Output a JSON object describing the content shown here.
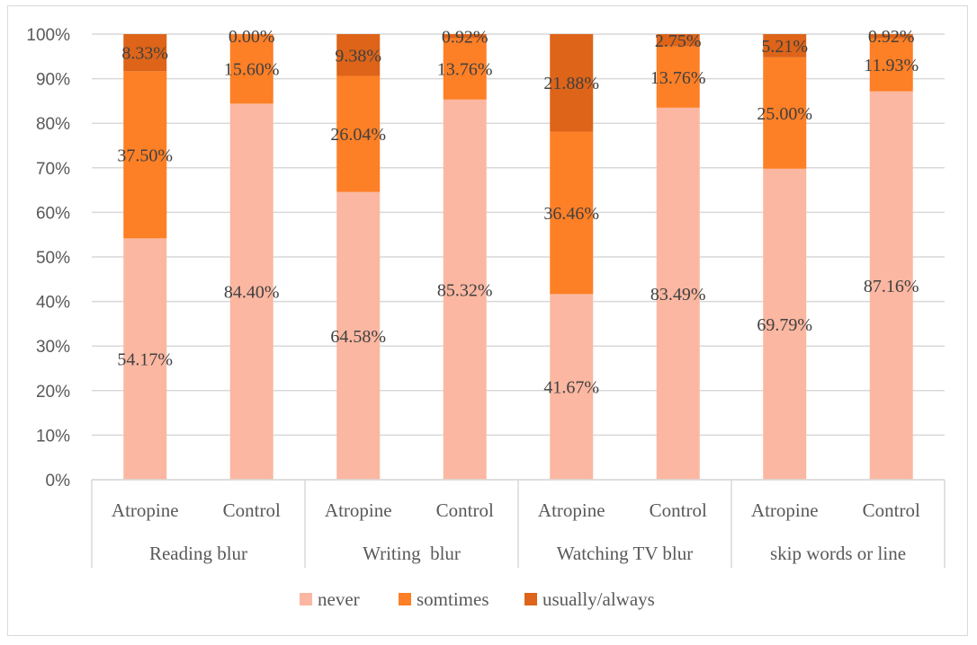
{
  "chart_data": {
    "type": "bar",
    "stacked": true,
    "percent": true,
    "title": "",
    "xlabel": "",
    "ylabel": "",
    "ylim": [
      0,
      100
    ],
    "y_ticks": [
      "0%",
      "10%",
      "20%",
      "30%",
      "40%",
      "50%",
      "60%",
      "70%",
      "80%",
      "90%",
      "100%"
    ],
    "groups": [
      "Reading blur",
      "Writing  blur",
      "Watching TV blur",
      "skip words or line"
    ],
    "subcategories": [
      "Atropine",
      "Control"
    ],
    "categories": [
      "Atropine",
      "Control",
      "Atropine",
      "Control",
      "Atropine",
      "Control",
      "Atropine",
      "Control"
    ],
    "series": [
      {
        "name": "never",
        "color": "#fbb7a1",
        "values": [
          54.17,
          84.4,
          64.58,
          85.32,
          41.67,
          83.49,
          69.79,
          87.16
        ],
        "labels": [
          "54.17%",
          "84.40%",
          "64.58%",
          "85.32%",
          "41.67%",
          "83.49%",
          "69.79%",
          "87.16%"
        ]
      },
      {
        "name": "somtimes",
        "color": "#fd7f26",
        "values": [
          37.5,
          15.6,
          26.04,
          13.76,
          36.46,
          13.76,
          25.0,
          11.93
        ],
        "labels": [
          "37.50%",
          "15.60%",
          "26.04%",
          "13.76%",
          "36.46%",
          "13.76%",
          "25.00%",
          "11.93%"
        ]
      },
      {
        "name": "usually/always",
        "color": "#dd6419",
        "values": [
          8.33,
          0.0,
          9.38,
          0.92,
          21.88,
          2.75,
          5.21,
          0.92
        ],
        "labels": [
          "8.33%",
          "0.00%",
          "9.38%",
          "0.92%",
          "21.88%",
          "2.75%",
          "5.21%",
          "0.92%"
        ]
      }
    ],
    "gridlines": true,
    "legend_position": "bottom"
  }
}
